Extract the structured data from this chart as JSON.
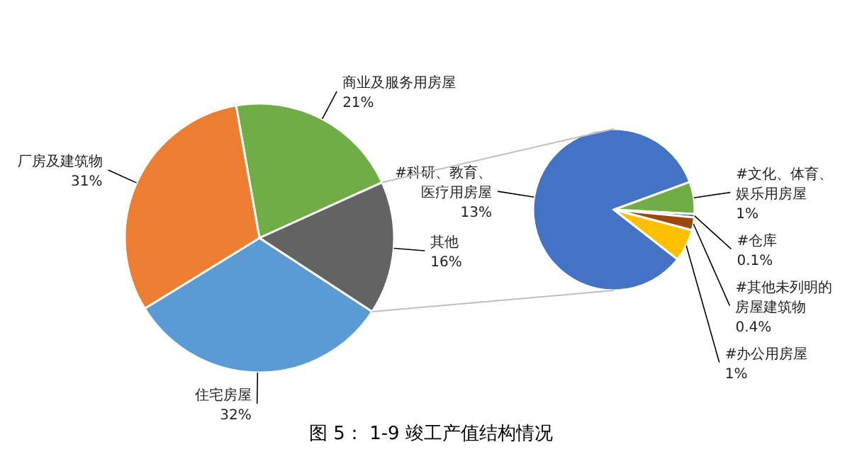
{
  "chart_data": [
    {
      "type": "pie",
      "title": "图 5： 1-9 竣工产值结构情况",
      "data_labels": true,
      "categories": [
        "商业及服务用房屋",
        "其他",
        "住宅房屋",
        "厂房及建筑物"
      ],
      "values": [
        21,
        16,
        32,
        31
      ],
      "value_labels": [
        "21%",
        "16%",
        "32%",
        "31%"
      ],
      "colors": [
        "#70ad47",
        "#636363",
        "#5b9bd5",
        "#ed7d31"
      ]
    },
    {
      "type": "pie",
      "data_labels": true,
      "categories": [
        "#科研、教育、医疗用房屋",
        "#文化、体育、娱乐用房屋",
        "#仓库",
        "#其他未列明的房屋建筑物",
        "#办公用房屋"
      ],
      "values": [
        13,
        1,
        0.1,
        0.4,
        1
      ],
      "value_labels": [
        "13%",
        "1%",
        "0.1%",
        "0.4%",
        "1%"
      ],
      "colors": [
        "#4472c4",
        "#70ad47",
        "#264478",
        "#9e480e",
        "#ffc000"
      ]
    }
  ]
}
